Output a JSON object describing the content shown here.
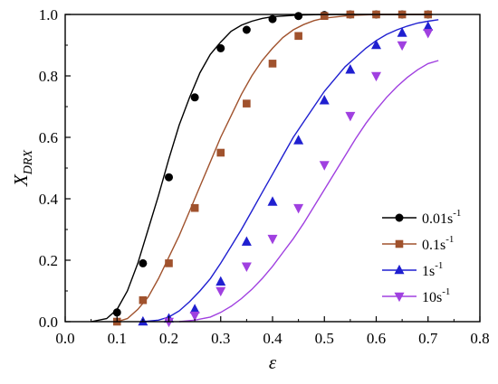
{
  "chart_data": {
    "type": "line",
    "xlabel": "ε",
    "ylabel": {
      "main": "X",
      "subscript": "DRX"
    },
    "xlim": [
      0.0,
      0.8
    ],
    "ylim": [
      0.0,
      1.0
    ],
    "xticks": [
      "0.0",
      "0.1",
      "0.2",
      "0.3",
      "0.4",
      "0.5",
      "0.6",
      "0.7",
      "0.8"
    ],
    "yticks": [
      "0.0",
      "0.2",
      "0.4",
      "0.6",
      "0.8",
      "1.0"
    ],
    "grid": false,
    "legend_position": "lower-right",
    "series": [
      {
        "name": "0.01s",
        "name_superscript": "-1",
        "color": "#000000",
        "marker": "circle",
        "markers": [
          [
            0.1,
            0.03
          ],
          [
            0.15,
            0.19
          ],
          [
            0.2,
            0.47
          ],
          [
            0.25,
            0.73
          ],
          [
            0.3,
            0.89
          ],
          [
            0.35,
            0.95
          ],
          [
            0.4,
            0.985
          ],
          [
            0.45,
            0.995
          ],
          [
            0.5,
            0.998
          ],
          [
            0.55,
            1.0
          ],
          [
            0.6,
            1.0
          ],
          [
            0.65,
            1.0
          ],
          [
            0.7,
            1.0
          ]
        ],
        "curve": [
          [
            0.05,
            0.0
          ],
          [
            0.08,
            0.01
          ],
          [
            0.1,
            0.04
          ],
          [
            0.12,
            0.1
          ],
          [
            0.14,
            0.19
          ],
          [
            0.16,
            0.3
          ],
          [
            0.18,
            0.41
          ],
          [
            0.2,
            0.53
          ],
          [
            0.22,
            0.64
          ],
          [
            0.24,
            0.73
          ],
          [
            0.26,
            0.81
          ],
          [
            0.28,
            0.87
          ],
          [
            0.3,
            0.91
          ],
          [
            0.32,
            0.945
          ],
          [
            0.34,
            0.965
          ],
          [
            0.36,
            0.978
          ],
          [
            0.38,
            0.987
          ],
          [
            0.4,
            0.993
          ],
          [
            0.45,
            0.998
          ],
          [
            0.5,
            1.0
          ],
          [
            0.7,
            1.0
          ]
        ]
      },
      {
        "name": "0.1s",
        "name_superscript": "-1",
        "color": "#a0522d",
        "marker": "square",
        "markers": [
          [
            0.1,
            0.0
          ],
          [
            0.15,
            0.07
          ],
          [
            0.2,
            0.19
          ],
          [
            0.25,
            0.37
          ],
          [
            0.3,
            0.55
          ],
          [
            0.35,
            0.71
          ],
          [
            0.4,
            0.84
          ],
          [
            0.45,
            0.93
          ],
          [
            0.5,
            0.995
          ],
          [
            0.55,
            1.0
          ],
          [
            0.6,
            1.0
          ],
          [
            0.65,
            1.0
          ],
          [
            0.7,
            1.0
          ]
        ],
        "curve": [
          [
            0.1,
            0.0
          ],
          [
            0.12,
            0.01
          ],
          [
            0.14,
            0.04
          ],
          [
            0.16,
            0.08
          ],
          [
            0.18,
            0.14
          ],
          [
            0.2,
            0.21
          ],
          [
            0.22,
            0.28
          ],
          [
            0.24,
            0.36
          ],
          [
            0.26,
            0.44
          ],
          [
            0.28,
            0.52
          ],
          [
            0.3,
            0.6
          ],
          [
            0.32,
            0.67
          ],
          [
            0.34,
            0.74
          ],
          [
            0.36,
            0.8
          ],
          [
            0.38,
            0.85
          ],
          [
            0.4,
            0.89
          ],
          [
            0.42,
            0.925
          ],
          [
            0.44,
            0.95
          ],
          [
            0.46,
            0.967
          ],
          [
            0.48,
            0.98
          ],
          [
            0.5,
            0.988
          ],
          [
            0.55,
            0.997
          ],
          [
            0.6,
            1.0
          ],
          [
            0.7,
            1.0
          ]
        ]
      },
      {
        "name": "1s",
        "name_superscript": "-1",
        "color": "#1f1fd0",
        "marker": "triangle-up",
        "markers": [
          [
            0.15,
            0.0
          ],
          [
            0.2,
            0.01
          ],
          [
            0.25,
            0.04
          ],
          [
            0.3,
            0.13
          ],
          [
            0.35,
            0.26
          ],
          [
            0.4,
            0.39
          ],
          [
            0.45,
            0.59
          ],
          [
            0.5,
            0.72
          ],
          [
            0.55,
            0.82
          ],
          [
            0.6,
            0.9
          ],
          [
            0.65,
            0.94
          ],
          [
            0.7,
            0.96
          ]
        ],
        "curve": [
          [
            0.15,
            0.0
          ],
          [
            0.18,
            0.005
          ],
          [
            0.2,
            0.015
          ],
          [
            0.22,
            0.035
          ],
          [
            0.24,
            0.065
          ],
          [
            0.26,
            0.1
          ],
          [
            0.28,
            0.14
          ],
          [
            0.3,
            0.19
          ],
          [
            0.32,
            0.245
          ],
          [
            0.34,
            0.3
          ],
          [
            0.36,
            0.36
          ],
          [
            0.38,
            0.42
          ],
          [
            0.4,
            0.48
          ],
          [
            0.42,
            0.54
          ],
          [
            0.44,
            0.6
          ],
          [
            0.46,
            0.65
          ],
          [
            0.48,
            0.7
          ],
          [
            0.5,
            0.75
          ],
          [
            0.52,
            0.79
          ],
          [
            0.54,
            0.83
          ],
          [
            0.56,
            0.86
          ],
          [
            0.58,
            0.89
          ],
          [
            0.6,
            0.915
          ],
          [
            0.62,
            0.935
          ],
          [
            0.64,
            0.95
          ],
          [
            0.66,
            0.962
          ],
          [
            0.68,
            0.972
          ],
          [
            0.7,
            0.978
          ],
          [
            0.72,
            0.983
          ]
        ]
      },
      {
        "name": "10s",
        "name_superscript": "-1",
        "color": "#a040e0",
        "marker": "triangle-down",
        "markers": [
          [
            0.2,
            0.0
          ],
          [
            0.25,
            0.02
          ],
          [
            0.3,
            0.1
          ],
          [
            0.35,
            0.18
          ],
          [
            0.4,
            0.27
          ],
          [
            0.45,
            0.37
          ],
          [
            0.5,
            0.51
          ],
          [
            0.55,
            0.67
          ],
          [
            0.6,
            0.8
          ],
          [
            0.65,
            0.9
          ],
          [
            0.7,
            0.94
          ]
        ],
        "curve": [
          [
            0.22,
            0.0
          ],
          [
            0.25,
            0.005
          ],
          [
            0.28,
            0.015
          ],
          [
            0.3,
            0.03
          ],
          [
            0.32,
            0.05
          ],
          [
            0.34,
            0.075
          ],
          [
            0.36,
            0.105
          ],
          [
            0.38,
            0.14
          ],
          [
            0.4,
            0.18
          ],
          [
            0.42,
            0.225
          ],
          [
            0.44,
            0.27
          ],
          [
            0.46,
            0.32
          ],
          [
            0.48,
            0.375
          ],
          [
            0.5,
            0.43
          ],
          [
            0.52,
            0.485
          ],
          [
            0.54,
            0.54
          ],
          [
            0.56,
            0.595
          ],
          [
            0.58,
            0.645
          ],
          [
            0.6,
            0.69
          ],
          [
            0.62,
            0.73
          ],
          [
            0.64,
            0.765
          ],
          [
            0.66,
            0.795
          ],
          [
            0.68,
            0.82
          ],
          [
            0.7,
            0.84
          ],
          [
            0.72,
            0.85
          ]
        ]
      }
    ]
  }
}
